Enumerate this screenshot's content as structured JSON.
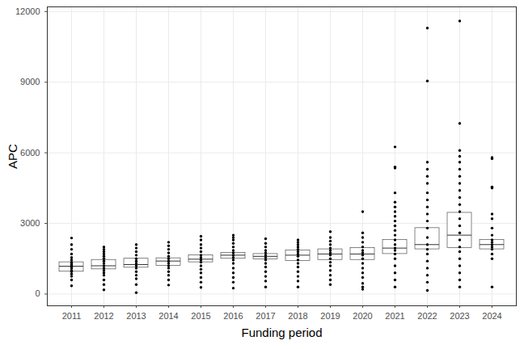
{
  "chart_data": {
    "type": "box",
    "x_label": "Funding period",
    "y_label": "APC",
    "categories": [
      "2011",
      "2012",
      "2013",
      "2014",
      "2015",
      "2016",
      "2017",
      "2018",
      "2019",
      "2020",
      "2021",
      "2022",
      "2023",
      "2024"
    ],
    "q1": [
      950,
      1050,
      1120,
      1200,
      1350,
      1500,
      1480,
      1400,
      1450,
      1450,
      1700,
      1900,
      1950,
      1900
    ],
    "median": [
      1180,
      1200,
      1250,
      1400,
      1480,
      1650,
      1600,
      1650,
      1700,
      1700,
      1950,
      2100,
      2500,
      2100
    ],
    "q3": [
      1350,
      1450,
      1500,
      1520,
      1650,
      1750,
      1700,
      1850,
      1900,
      1950,
      2300,
      2800,
      3450,
      2300
    ],
    "points": [
      [
        350,
        600,
        750,
        850,
        950,
        1000,
        1100,
        1150,
        1200,
        1250,
        1300,
        1350,
        1450,
        1550,
        1700,
        1900,
        2100,
        2380
      ],
      [
        180,
        400,
        600,
        800,
        900,
        1000,
        1100,
        1200,
        1300,
        1400,
        1500,
        1600,
        1700,
        1800,
        1900,
        2000
      ],
      [
        60,
        400,
        650,
        800,
        950,
        1100,
        1200,
        1300,
        1400,
        1500,
        1650,
        1800,
        1950,
        2100
      ],
      [
        380,
        600,
        800,
        950,
        1100,
        1200,
        1300,
        1400,
        1500,
        1600,
        1750,
        1900,
        2050,
        2200
      ],
      [
        280,
        500,
        700,
        900,
        1050,
        1200,
        1350,
        1450,
        1550,
        1650,
        1800,
        1950,
        2100,
        2300,
        2450
      ],
      [
        250,
        500,
        700,
        900,
        1100,
        1300,
        1450,
        1550,
        1650,
        1750,
        1850,
        2000,
        2150,
        2300,
        2400,
        2500
      ],
      [
        300,
        550,
        750,
        950,
        1150,
        1300,
        1450,
        1550,
        1650,
        1750,
        1850,
        2000,
        2150,
        2350
      ],
      [
        300,
        550,
        750,
        950,
        1150,
        1300,
        1450,
        1600,
        1700,
        1800,
        1900,
        2000,
        2100,
        2200,
        2300
      ],
      [
        400,
        600,
        800,
        1000,
        1200,
        1350,
        1500,
        1650,
        1750,
        1850,
        1950,
        2100,
        2250,
        2400,
        2650
      ],
      [
        200,
        300,
        450,
        700,
        900,
        1100,
        1300,
        1500,
        1650,
        1750,
        1850,
        2000,
        2200,
        2400,
        2600,
        3500
      ],
      [
        300,
        600,
        900,
        1200,
        1500,
        1700,
        1850,
        1950,
        2100,
        2300,
        2500,
        2700,
        2900,
        3100,
        3300,
        3500,
        3700,
        3900,
        4300,
        5350,
        5400,
        6250
      ],
      [
        150,
        500,
        800,
        1100,
        1400,
        1700,
        1900,
        2100,
        2400,
        2800,
        3100,
        3400,
        3700,
        4000,
        4300,
        4700,
        5000,
        5300,
        5600,
        9050,
        11300
      ],
      [
        300,
        600,
        900,
        1200,
        1500,
        1800,
        2000,
        2300,
        2600,
        2900,
        3200,
        3500,
        3800,
        4100,
        4400,
        4700,
        5000,
        5300,
        5600,
        5850,
        6100,
        7250,
        11600
      ],
      [
        300,
        1500,
        1700,
        1900,
        2000,
        2100,
        2200,
        2300,
        2500,
        2800,
        3200,
        3400,
        4500,
        4550,
        5750,
        5800
      ]
    ],
    "color": "#000000",
    "ylim": [
      -500,
      12200
    ],
    "yticks": [
      0,
      3000,
      6000,
      9000,
      12000
    ],
    "grid": true
  }
}
